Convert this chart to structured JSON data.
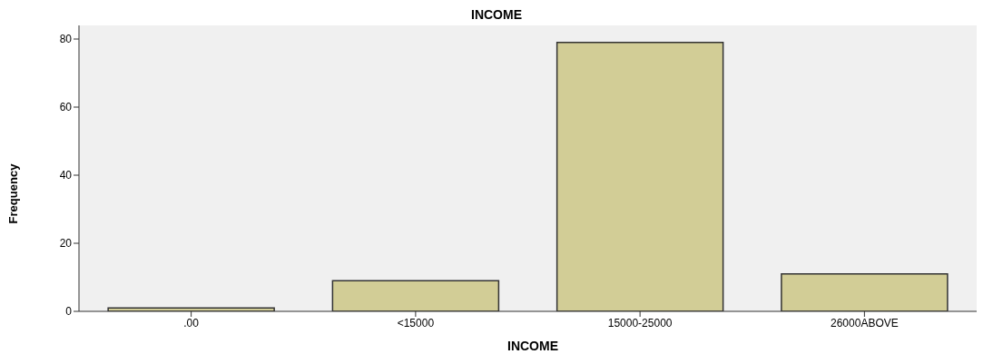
{
  "chart_data": {
    "type": "bar",
    "title": "INCOME",
    "xlabel": "INCOME",
    "ylabel": "Frequency",
    "categories": [
      ".00",
      "<15000",
      "15000-25000",
      "26000ABOVE"
    ],
    "values": [
      1,
      9,
      79,
      11
    ],
    "color": "#d2cd96",
    "ylim": [
      0,
      84
    ],
    "yticks": [
      0,
      20,
      40,
      60,
      80
    ],
    "grid": false,
    "legend": false
  }
}
